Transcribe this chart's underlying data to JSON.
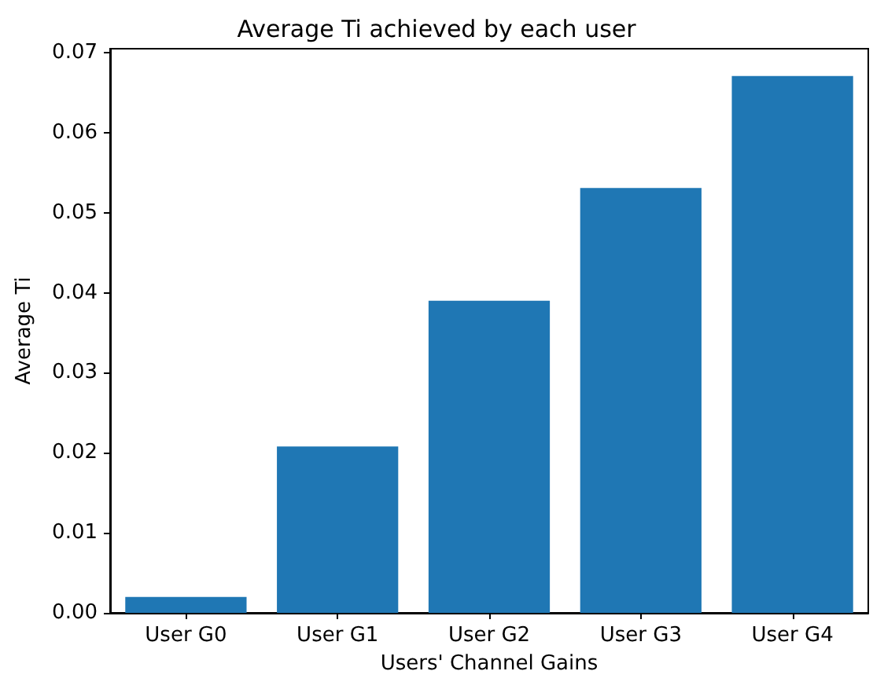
{
  "chart_data": {
    "type": "bar",
    "title": "Average Ti achieved by each user",
    "xlabel": "Users' Channel Gains",
    "ylabel": "Average Ti",
    "categories": [
      "User G0",
      "User G1",
      "User G2",
      "User G3",
      "User G4"
    ],
    "values": [
      0.002,
      0.0208,
      0.039,
      0.0531,
      0.0671
    ],
    "color": "#1f77b4",
    "ylim": [
      0,
      0.0705
    ],
    "yticks": [
      {
        "value": 0,
        "label": "0.00"
      },
      {
        "value": 0.01,
        "label": "0.01"
      },
      {
        "value": 0.02,
        "label": "0.02"
      },
      {
        "value": 0.03,
        "label": "0.03"
      },
      {
        "value": 0.04,
        "label": "0.04"
      },
      {
        "value": 0.05,
        "label": "0.05"
      },
      {
        "value": 0.06,
        "label": "0.06"
      },
      {
        "value": 0.07,
        "label": "0.07"
      }
    ],
    "grid": false
  }
}
